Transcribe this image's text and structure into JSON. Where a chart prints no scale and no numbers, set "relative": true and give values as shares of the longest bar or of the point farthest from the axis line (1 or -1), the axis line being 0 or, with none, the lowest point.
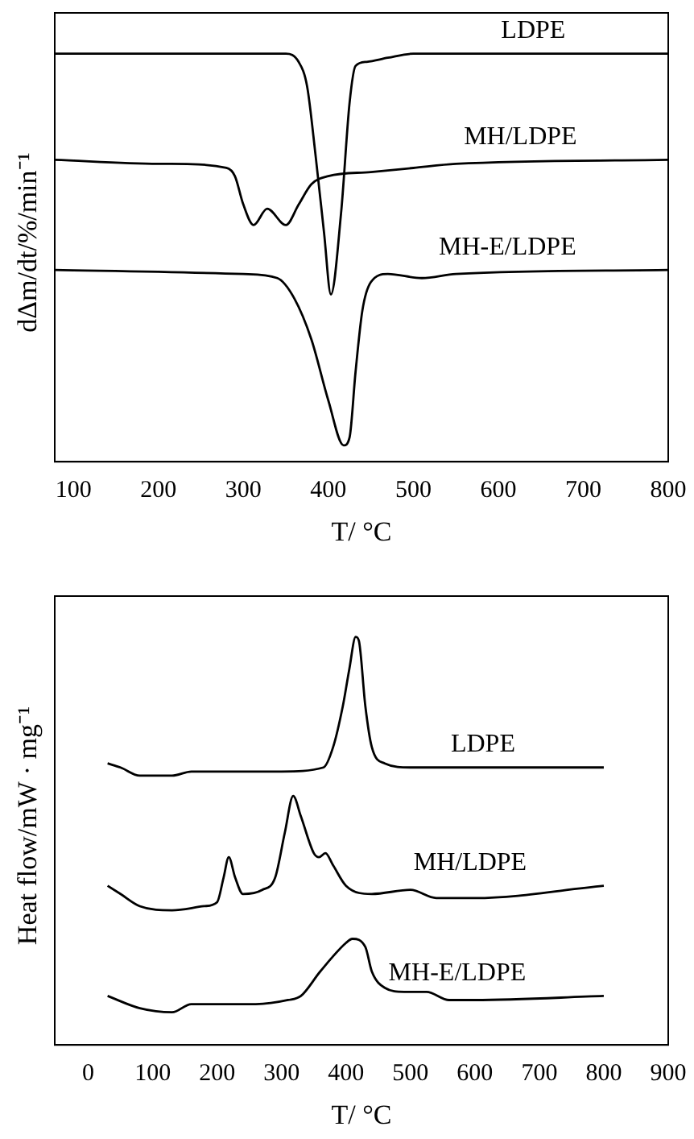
{
  "chart_data": [
    {
      "type": "line",
      "relative": true,
      "xlabel": "T/ °C",
      "ylabel": "dΔm/dt/%/min⁻¹",
      "xlim": [
        78,
        800
      ],
      "xticks": [
        100,
        200,
        300,
        400,
        500,
        600,
        700,
        800
      ],
      "grid": false,
      "legend": false,
      "marker": "none",
      "line_style": "solid",
      "series": [
        {
          "name": "LDPE",
          "color": "#000000",
          "x": [
            78,
            200,
            350,
            365,
            375,
            385,
            395,
            403,
            415,
            425,
            432,
            445,
            470,
            500,
            800
          ],
          "values": [
            1,
            1,
            1,
            0.98,
            0.92,
            0.75,
            0.56,
            0.41,
            0.61,
            0.88,
            0.97,
            0.98,
            0.99,
            1,
            1
          ]
        },
        {
          "name": "MH/LDPE",
          "color": "#000000",
          "x": [
            78,
            200,
            215,
            280,
            290,
            300,
            312,
            328,
            350,
            365,
            380,
            400,
            450,
            500,
            550,
            800
          ],
          "values": [
            0.74,
            0.73,
            0.73,
            0.72,
            0.7,
            0.63,
            0.58,
            0.62,
            0.58,
            0.63,
            0.68,
            0.7,
            0.71,
            0.72,
            0.73,
            0.74
          ]
        },
        {
          "name": "MH-E/LDPE",
          "color": "#000000",
          "x": [
            78,
            300,
            340,
            360,
            380,
            400,
            418,
            425,
            432,
            440,
            450,
            470,
            510,
            550,
            800
          ],
          "values": [
            0.47,
            0.46,
            0.45,
            0.4,
            0.3,
            0.15,
            0.04,
            0.06,
            0.22,
            0.37,
            0.44,
            0.46,
            0.45,
            0.46,
            0.47
          ]
        }
      ]
    },
    {
      "type": "line",
      "relative": true,
      "xlabel": "T/ °C",
      "ylabel": "Heat flow/mW · mg⁻¹",
      "xlim": [
        -52,
        900
      ],
      "xticks": [
        0,
        100,
        200,
        300,
        400,
        500,
        600,
        700,
        800,
        900
      ],
      "grid": false,
      "legend": false,
      "marker": "none",
      "line_style": "solid",
      "series": [
        {
          "name": "LDPE",
          "color": "#000000",
          "x": [
            30,
            50,
            80,
            130,
            160,
            230,
            300,
            365,
            380,
            395,
            405,
            415,
            420,
            430,
            440,
            460,
            500,
            550,
            800
          ],
          "values": [
            0.69,
            0.68,
            0.66,
            0.66,
            0.67,
            0.67,
            0.67,
            0.68,
            0.73,
            0.83,
            0.92,
            1,
            0.99,
            0.83,
            0.73,
            0.69,
            0.68,
            0.68,
            0.68
          ]
        },
        {
          "name": "MH/LDPE",
          "color": "#000000",
          "x": [
            30,
            50,
            80,
            130,
            180,
            200,
            210,
            218,
            228,
            240,
            270,
            290,
            305,
            318,
            330,
            350,
            358,
            368,
            380,
            400,
            440,
            500,
            540,
            600,
            800
          ],
          "values": [
            0.39,
            0.37,
            0.34,
            0.33,
            0.34,
            0.35,
            0.41,
            0.46,
            0.41,
            0.37,
            0.38,
            0.41,
            0.52,
            0.61,
            0.56,
            0.47,
            0.46,
            0.47,
            0.44,
            0.39,
            0.37,
            0.38,
            0.36,
            0.36,
            0.39
          ]
        },
        {
          "name": "MH-E/LDPE",
          "color": "#000000",
          "x": [
            30,
            80,
            130,
            160,
            230,
            260,
            310,
            330,
            360,
            400,
            410,
            430,
            440,
            460,
            490,
            525,
            560,
            600,
            800
          ],
          "values": [
            0.12,
            0.09,
            0.08,
            0.1,
            0.1,
            0.1,
            0.11,
            0.12,
            0.18,
            0.25,
            0.26,
            0.24,
            0.18,
            0.14,
            0.13,
            0.13,
            0.11,
            0.11,
            0.12
          ]
        }
      ]
    }
  ]
}
